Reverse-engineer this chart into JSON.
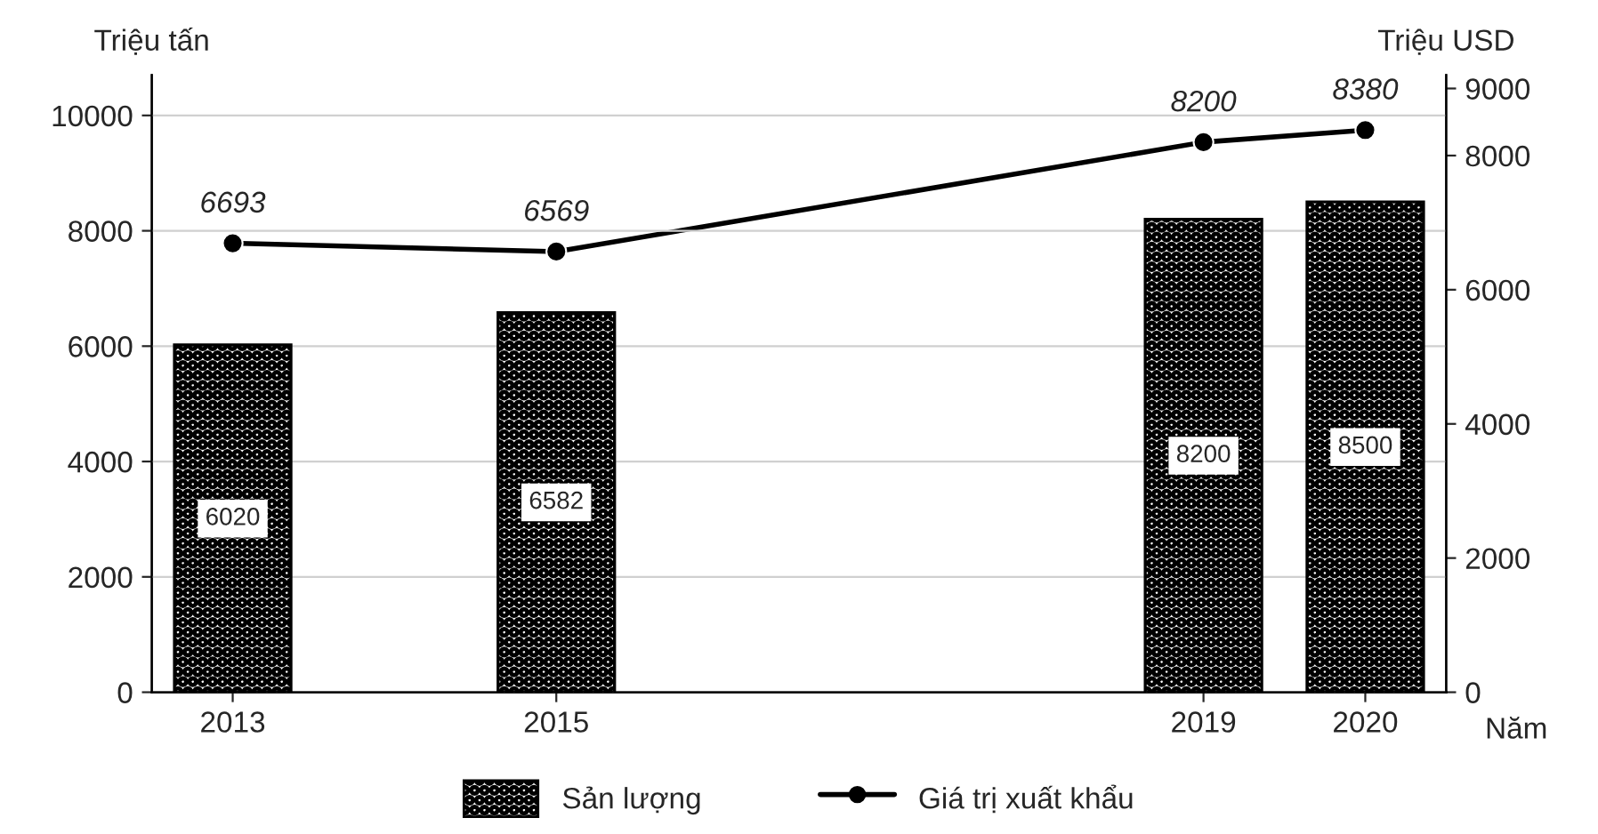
{
  "chart_data": {
    "type": "bar",
    "ylabel": "Triệu tấn",
    "y2label": "Triệu USD",
    "xlabel": "Năm",
    "x": [
      2013,
      2015,
      2019,
      2020
    ],
    "xlim": [
      2012.5,
      2020.5
    ],
    "xticks": [
      2013,
      2015,
      2019,
      2020
    ],
    "ylim": [
      0,
      10700
    ],
    "yticks": [
      0,
      2000,
      4000,
      6000,
      8000,
      10000
    ],
    "y2lim": [
      0,
      9200
    ],
    "y2ticks": [
      0,
      2000,
      4000,
      6000,
      8000,
      9000
    ],
    "series": [
      {
        "name": "Sản lượng",
        "color": "#000000",
        "values": [
          6020,
          6582,
          8200,
          8500
        ]
      },
      {
        "name": "Giá trị xuất khẩu",
        "type": "line",
        "axis": "y2",
        "color": "#000000",
        "values": [
          6693,
          6569,
          8200,
          8380
        ]
      }
    ],
    "data_labels": true,
    "grid": "y",
    "legend": "bottom",
    "marker": "circle",
    "line_style": "solid"
  }
}
